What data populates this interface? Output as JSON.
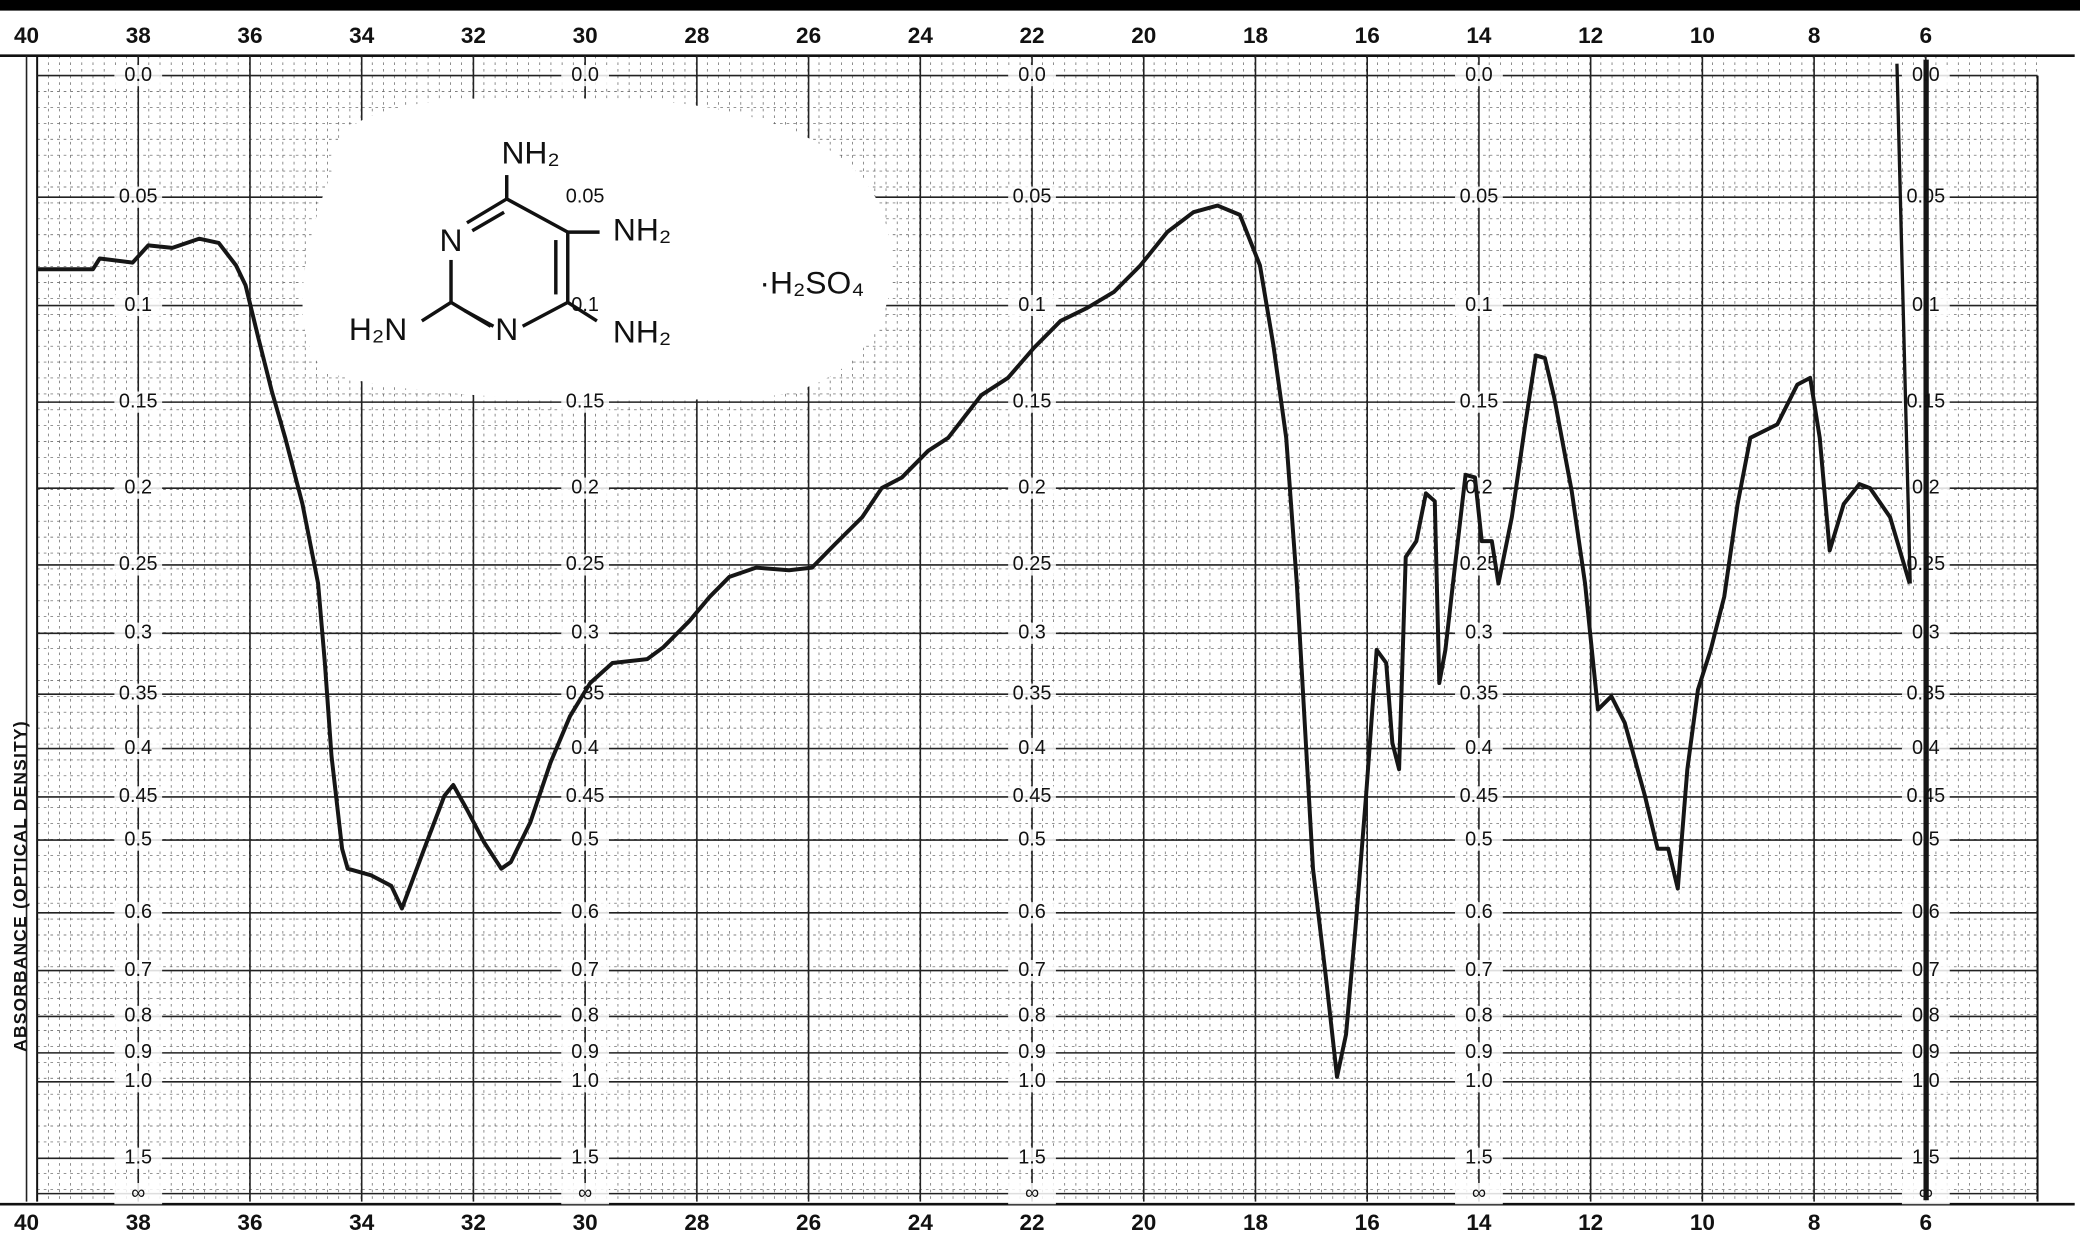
{
  "chart_data": {
    "type": "line",
    "y_axis_label": "ABSORBANCE (OPTICAL DENSITY)",
    "annotations": {
      "structure_labels": [
        "NH₂",
        "N",
        "NH₂",
        "H₂N",
        "N",
        "NH₂"
      ],
      "salt": "·H₂SO₄"
    },
    "color": "#161616",
    "grid": true,
    "yscale": "absorbance",
    "xlim": [
      40,
      4
    ],
    "ylim": [
      0,
      null
    ],
    "xticks": [
      40,
      38,
      36,
      34,
      32,
      30,
      28,
      26,
      24,
      22,
      20,
      18,
      16,
      14,
      12,
      10,
      8,
      6
    ],
    "yticks": [
      {
        "value": 0,
        "label": "0.0"
      },
      0.05,
      0.1,
      0.15,
      0.2,
      0.25,
      0.3,
      0.35,
      0.4,
      0.45,
      0.5,
      0.6,
      0.7,
      0.8,
      0.9,
      {
        "value": 1,
        "label": "1.0"
      },
      1.5,
      {
        "value": null,
        "label": "∞"
      }
    ],
    "x": [
      39.81,
      38.81,
      38.69,
      38.1,
      37.82,
      37.39,
      36.91,
      36.56,
      36.25,
      36.08,
      35.85,
      35.61,
      35.37,
      35.06,
      34.78,
      34.66,
      34.54,
      34.35,
      34.25,
      33.83,
      33.47,
      33.28,
      32.88,
      32.52,
      32.36,
      32.12,
      31.81,
      31.5,
      31.33,
      30.98,
      30.62,
      30.27,
      29.91,
      29.51,
      28.89,
      28.6,
      28.13,
      27.77,
      27.42,
      26.94,
      26.35,
      25.94,
      25.52,
      25.04,
      24.69,
      24.33,
      23.86,
      23.5,
      22.91,
      22.43,
      21.96,
      21.49,
      21.01,
      20.53,
      20.06,
      19.58,
      19.11,
      18.68,
      18.28,
      17.92,
      17.68,
      17.45,
      17.26,
      16.97,
      16.73,
      16.54,
      16.38,
      16.21,
      16.02,
      15.83,
      15.66,
      15.55,
      15.43,
      15.31,
      15.12,
      14.95,
      14.79,
      14.71,
      14.6,
      14.41,
      14.24,
      14.07,
      13.95,
      13.77,
      13.65,
      13.41,
      13.17,
      12.98,
      12.82,
      12.65,
      12.34,
      12.1,
      11.87,
      11.63,
      11.39,
      11.03,
      10.8,
      10.61,
      10.44,
      10.27,
      10.08,
      9.85,
      9.61,
      9.37,
      9.14,
      8.66,
      8.3,
      8.07,
      7.9,
      7.72,
      7.47,
      7.19,
      7.0,
      6.64,
      6.29
    ],
    "values": [
      0.0826,
      0.0826,
      0.0776,
      0.0795,
      0.0715,
      0.0727,
      0.0685,
      0.0704,
      0.0808,
      0.0902,
      0.1163,
      0.1441,
      0.17,
      0.2098,
      0.2631,
      0.3237,
      0.4073,
      0.5108,
      0.5367,
      0.5456,
      0.5604,
      0.5934,
      0.5108,
      0.4487,
      0.4372,
      0.4634,
      0.5025,
      0.5367,
      0.5279,
      0.4787,
      0.4139,
      0.3695,
      0.3404,
      0.3237,
      0.3205,
      0.3109,
      0.2903,
      0.2726,
      0.2584,
      0.2519,
      0.2537,
      0.2519,
      0.2356,
      0.2182,
      0.1999,
      0.1934,
      0.1776,
      0.17,
      0.1462,
      0.1369,
      0.121,
      0.1076,
      0.1011,
      0.0933,
      0.0808,
      0.0655,
      0.0566,
      0.0537,
      0.0578,
      0.0808,
      0.1197,
      0.17,
      0.2631,
      0.5367,
      0.7217,
      0.9813,
      0.8467,
      0.6248,
      0.4487,
      0.313,
      0.3237,
      0.3944,
      0.4207,
      0.2446,
      0.2339,
      0.2032,
      0.2081,
      0.3404,
      0.313,
      0.2446,
      0.1918,
      0.1934,
      0.2339,
      0.2339,
      0.2631,
      0.2182,
      0.1624,
      0.1251,
      0.1265,
      0.1477,
      0.2016,
      0.2631,
      0.3635,
      0.3518,
      0.3756,
      0.4487,
      0.5108,
      0.5108,
      0.5641,
      0.4207,
      0.346,
      0.313,
      0.2726,
      0.2098,
      0.17,
      0.1624,
      0.1405,
      0.1369,
      0.17,
      0.2401,
      0.2098,
      0.1975,
      0.1999,
      0.2182,
      0.2631
    ]
  }
}
